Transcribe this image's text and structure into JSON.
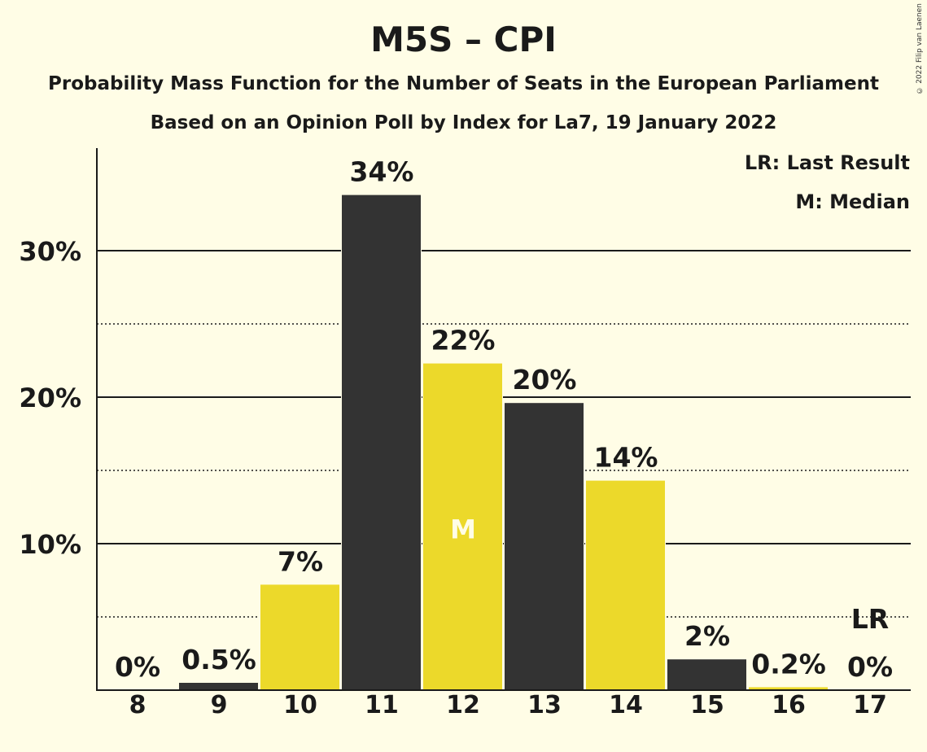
{
  "header": {
    "title": "M5S – CPI",
    "subtitle1": "Probability Mass Function for the Number of Seats in the European Parliament",
    "subtitle2": "Based on an Opinion Poll by Index for La7, 19 January 2022",
    "copyright": "© 2022 Filip van Laenen"
  },
  "legend": {
    "last_result": "LR: Last Result",
    "median": "M: Median"
  },
  "colors": {
    "background": "#fffde6",
    "dark_bar": "#333333",
    "yellow_bar": "#ecd92a",
    "text": "#1a1a1a",
    "median_label": "#fffde6"
  },
  "chart_data": {
    "type": "bar",
    "title": "M5S – CPI",
    "categories": [
      "8",
      "9",
      "10",
      "11",
      "12",
      "13",
      "14",
      "15",
      "16",
      "17"
    ],
    "values": [
      0,
      0.5,
      7.2,
      33.8,
      22.3,
      19.6,
      14.3,
      2.1,
      0.2,
      0
    ],
    "value_labels": [
      "0%",
      "0.5%",
      "7%",
      "34%",
      "22%",
      "20%",
      "14%",
      "2%",
      "0.2%",
      "0%"
    ],
    "bar_colors": [
      "dark",
      "dark",
      "yellow",
      "dark",
      "yellow",
      "dark",
      "yellow",
      "dark",
      "yellow",
      "dark"
    ],
    "median_category": "12",
    "median_marker": "M",
    "last_result_category": "17",
    "last_result_marker": "LR",
    "ylim": [
      0,
      37
    ],
    "yticks": [
      10,
      20,
      30
    ],
    "ytick_labels": [
      "10%",
      "20%",
      "30%"
    ],
    "minor_gridlines": [
      5,
      15,
      25
    ],
    "xlabel": "",
    "ylabel": "",
    "grid": true,
    "legend_position": "top-right"
  }
}
